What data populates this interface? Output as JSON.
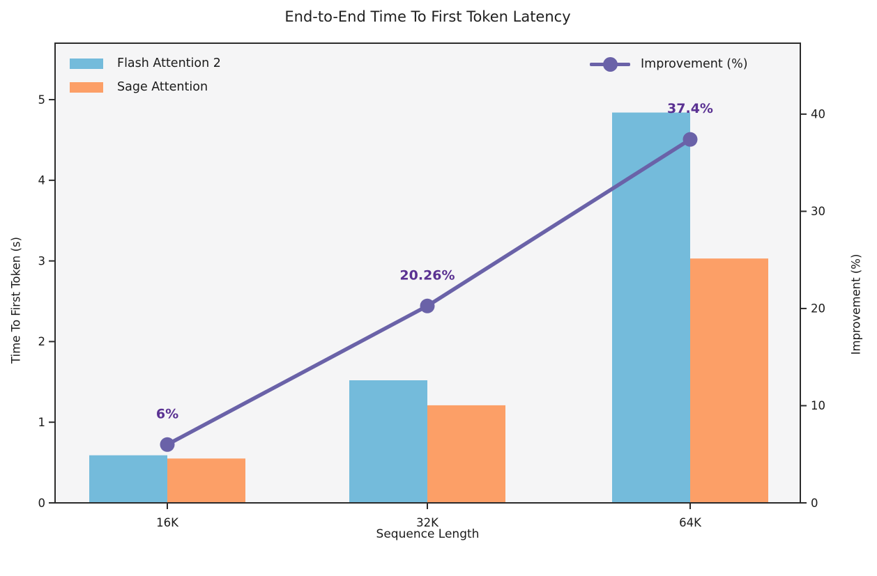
{
  "chart_data": {
    "type": "bar+line",
    "title": "End-to-End Time To First Token Latency",
    "xlabel": "Sequence Length",
    "ylabel_left": "Time To First Token (s)",
    "ylabel_right": "Improvement (%)",
    "categories": [
      "16K",
      "32K",
      "64K"
    ],
    "series": [
      {
        "name": "Flash Attention 2",
        "type": "bar",
        "axis": "left",
        "color": "#74BBDB",
        "values": [
          0.59,
          1.52,
          4.84
        ]
      },
      {
        "name": "Sage Attention",
        "type": "bar",
        "axis": "left",
        "color": "#FC9F67",
        "values": [
          0.55,
          1.21,
          3.03
        ]
      },
      {
        "name": "Improvement (%)",
        "type": "line",
        "axis": "right",
        "color": "#6A62A8",
        "marker": "circle",
        "values": [
          6,
          20.26,
          37.4
        ],
        "point_labels": [
          "6%",
          "20.26%",
          "37.4%"
        ],
        "label_color": "#5A3192"
      }
    ],
    "left_axis": {
      "tick_values": [
        0,
        1,
        2,
        3,
        4,
        5
      ],
      "range": [
        0,
        5.7
      ]
    },
    "right_axis": {
      "tick_values": [
        0,
        10,
        20,
        30,
        40
      ],
      "range": [
        0,
        47.3
      ]
    },
    "legend_position": {
      "bars": "upper left",
      "line": "upper right"
    },
    "grid": false,
    "plot_background": "#F5F5F6",
    "spine_color": "#2B2B2B",
    "tick_text_color": "#1A1A1A"
  }
}
